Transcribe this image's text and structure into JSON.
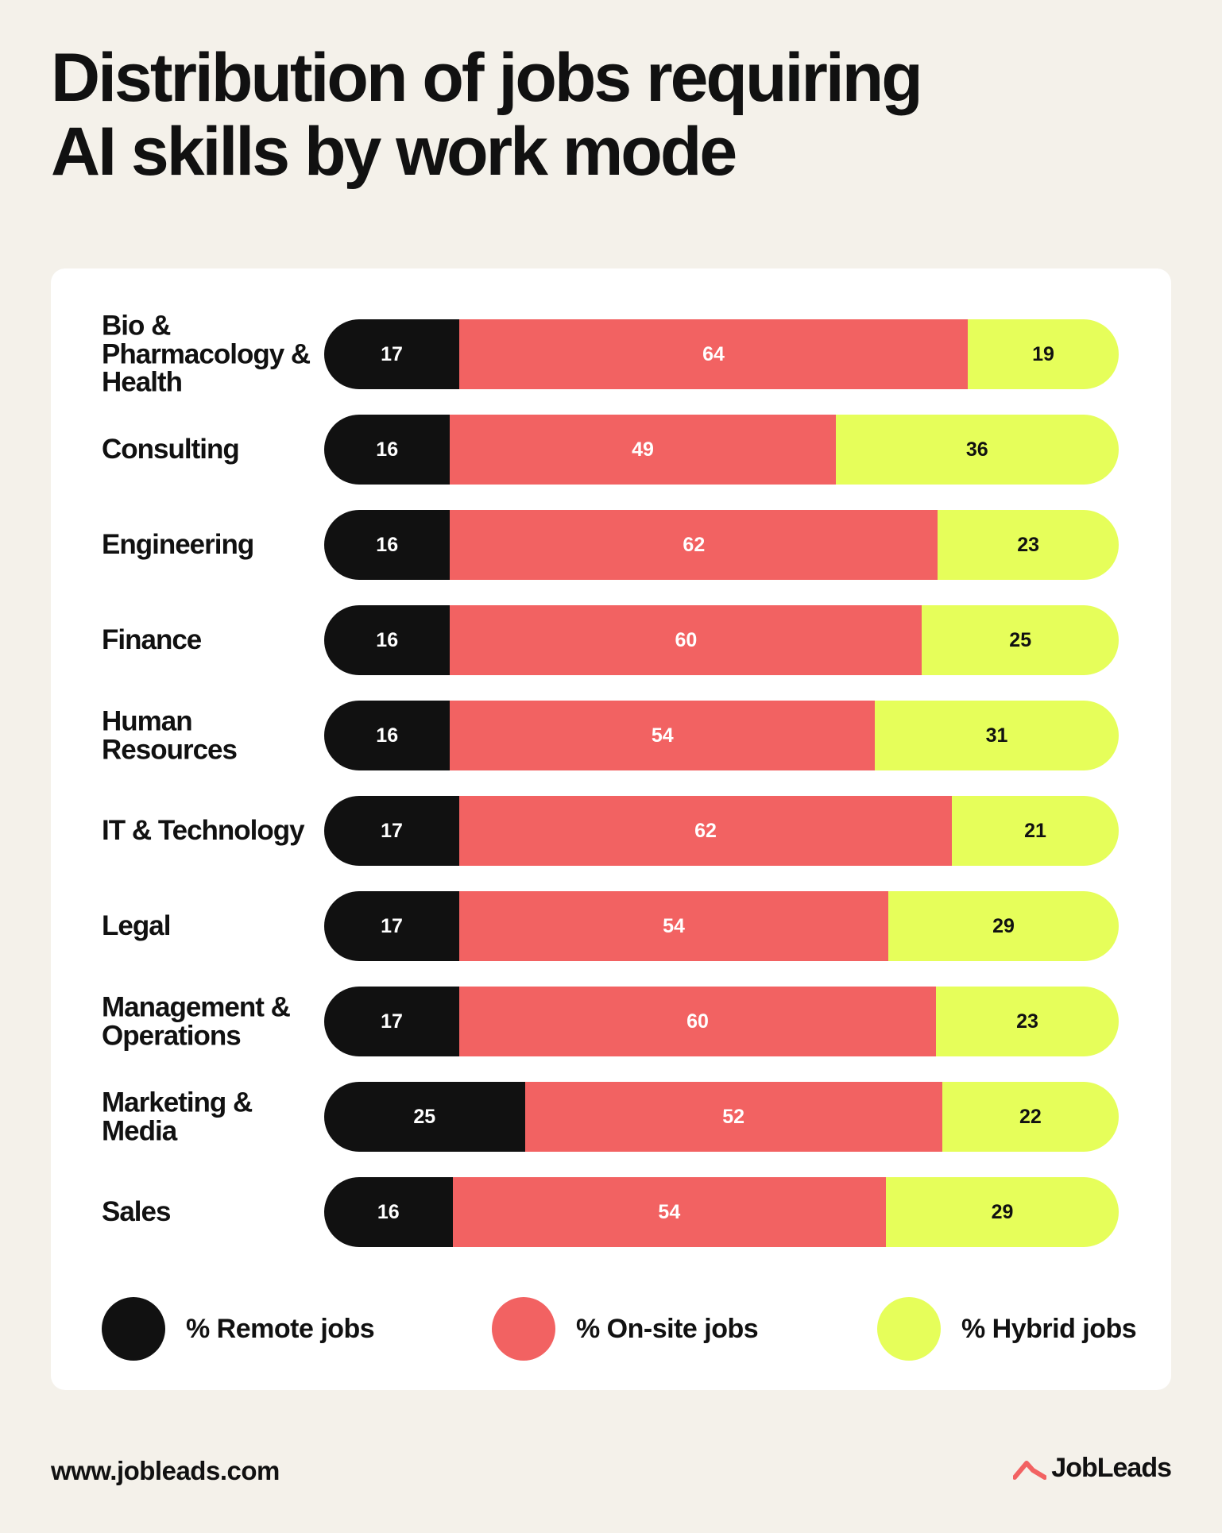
{
  "title_line1": "Distribution of jobs requiring",
  "title_line2": "AI skills by work mode",
  "chart_data": {
    "type": "bar",
    "orientation": "horizontal",
    "stacked": true,
    "categories": [
      "Bio & Pharmacology & Health",
      "Consulting",
      "Engineering",
      "Finance",
      "Human Resources",
      "IT & Technology",
      "Legal",
      "Management & Operations",
      "Marketing & Media",
      "Sales"
    ],
    "series": [
      {
        "name": "% Remote jobs",
        "color": "#111111",
        "values": [
          17,
          16,
          16,
          16,
          16,
          17,
          17,
          17,
          25,
          16
        ]
      },
      {
        "name": "% On-site jobs",
        "color": "#f26262",
        "values": [
          64,
          49,
          62,
          60,
          54,
          62,
          54,
          60,
          52,
          54
        ]
      },
      {
        "name": "% Hybrid jobs",
        "color": "#e6fe5a",
        "values": [
          19,
          36,
          23,
          25,
          31,
          21,
          29,
          23,
          22,
          29
        ]
      }
    ],
    "legend_position": "bottom",
    "grid": false
  },
  "footer": {
    "url": "www.jobleads.com",
    "brand": "JobLeads",
    "brand_color": "#f26262",
    "brand_icon": "jobleads-logo-icon"
  }
}
